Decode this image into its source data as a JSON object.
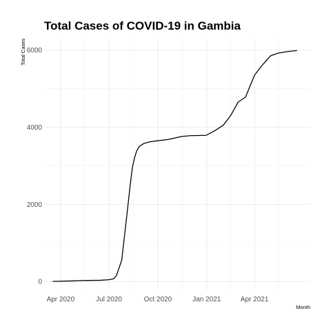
{
  "chart_data": {
    "type": "line",
    "title": "Total Cases of COVID-19 in Gambia",
    "xlabel": "Month",
    "ylabel": "Total Cases",
    "xlim": [
      "2020-03-01",
      "2021-07-15"
    ],
    "ylim": [
      -230,
      6280
    ],
    "x_ticks": [
      {
        "date": "2020-04-01",
        "label": "Apr 2020"
      },
      {
        "date": "2020-07-01",
        "label": "Jul 2020"
      },
      {
        "date": "2020-10-01",
        "label": "Oct 2020"
      },
      {
        "date": "2021-01-01",
        "label": "Jan 2021"
      },
      {
        "date": "2021-04-01",
        "label": "Apr 2021"
      }
    ],
    "y_ticks": [
      0,
      2000,
      4000,
      6000
    ],
    "grid": true,
    "legend": "none",
    "x": [
      "2020-03-17",
      "2020-04-15",
      "2020-05-15",
      "2020-06-15",
      "2020-07-01",
      "2020-07-10",
      "2020-07-15",
      "2020-07-20",
      "2020-07-25",
      "2020-07-30",
      "2020-08-04",
      "2020-08-10",
      "2020-08-14",
      "2020-08-18",
      "2020-08-22",
      "2020-08-26",
      "2020-08-30",
      "2020-09-05",
      "2020-09-15",
      "2020-10-01",
      "2020-10-20",
      "2020-11-15",
      "2020-12-01",
      "2020-12-31",
      "2021-01-15",
      "2021-02-01",
      "2021-02-15",
      "2021-03-01",
      "2021-03-15",
      "2021-04-01",
      "2021-04-15",
      "2021-05-01",
      "2021-05-15",
      "2021-06-01",
      "2021-06-20"
    ],
    "series": [
      {
        "values": [
          0,
          10,
          25,
          30,
          45,
          70,
          150,
          350,
          550,
          1150,
          1750,
          2500,
          2950,
          3200,
          3380,
          3480,
          3530,
          3580,
          3620,
          3650,
          3680,
          3760,
          3780,
          3790,
          3900,
          4050,
          4300,
          4650,
          4780,
          5350,
          5600,
          5850,
          5920,
          5960,
          5990
        ]
      }
    ]
  }
}
